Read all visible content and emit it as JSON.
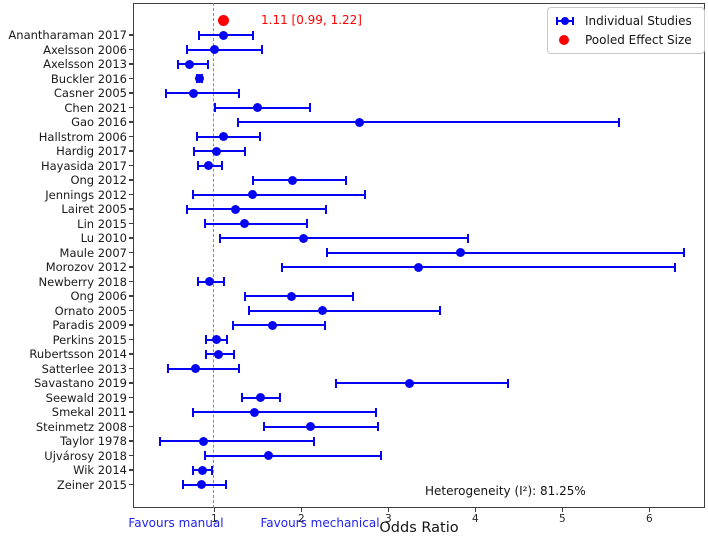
{
  "chart_data": {
    "type": "scatter",
    "subtype": "forest-plot",
    "title": "",
    "xlabel": "Odds Ratio",
    "ylabel": "",
    "xlim": [
      0.065,
      6.64
    ],
    "xticks": [
      1,
      2,
      3,
      4,
      5,
      6
    ],
    "grid": false,
    "reference_line_x": 1.0,
    "marker_color": "#0404f2",
    "pooled_color": "#ff0000",
    "pooled": {
      "est": 1.11,
      "lo": 0.99,
      "hi": 1.22,
      "display": "1.11 [0.99, 1.22]"
    },
    "heterogeneity_label": "Heterogeneity (I²): 81.25%",
    "legend": [
      {
        "label": "Individual Studies",
        "marker": "blue-errorbar-dot-icon",
        "color": "#0404f2"
      },
      {
        "label": "Pooled Effect Size",
        "marker": "red-dot-icon",
        "color": "#ff0000"
      }
    ],
    "legend_position": "upper right",
    "footer": {
      "favours_left": "Favours manual",
      "favours_right": "Favours mechanical",
      "favours_color": "#2222f0"
    },
    "studies": [
      {
        "name": "Anantharaman 2017",
        "est": 1.1,
        "lo": 0.82,
        "hi": 1.45
      },
      {
        "name": "Axelsson 2006",
        "est": 1.0,
        "lo": 0.68,
        "hi": 1.55
      },
      {
        "name": "Axelsson 2013",
        "est": 0.72,
        "lo": 0.58,
        "hi": 0.93
      },
      {
        "name": "Buckler 2016",
        "est": 0.83,
        "lo": 0.8,
        "hi": 0.86
      },
      {
        "name": "Casner 2005",
        "est": 0.76,
        "lo": 0.45,
        "hi": 1.28
      },
      {
        "name": "Chen 2021",
        "est": 1.5,
        "lo": 1.01,
        "hi": 2.1
      },
      {
        "name": "Gao 2016",
        "est": 2.67,
        "lo": 1.27,
        "hi": 5.65
      },
      {
        "name": "Hallstrom 2006",
        "est": 1.11,
        "lo": 0.8,
        "hi": 1.52
      },
      {
        "name": "Hardig 2017",
        "est": 1.02,
        "lo": 0.77,
        "hi": 1.35
      },
      {
        "name": "Hayasida 2017",
        "est": 0.93,
        "lo": 0.81,
        "hi": 1.09
      },
      {
        "name": "Ong 2012",
        "est": 1.9,
        "lo": 1.44,
        "hi": 2.51
      },
      {
        "name": "Jennings 2012",
        "est": 1.44,
        "lo": 0.76,
        "hi": 2.73
      },
      {
        "name": "Lairet 2005",
        "est": 1.24,
        "lo": 0.68,
        "hi": 2.28
      },
      {
        "name": "Lin 2015",
        "est": 1.35,
        "lo": 0.89,
        "hi": 2.07
      },
      {
        "name": "Lu 2010",
        "est": 2.03,
        "lo": 1.07,
        "hi": 3.92
      },
      {
        "name": "Maule 2007",
        "est": 3.83,
        "lo": 2.3,
        "hi": 6.4
      },
      {
        "name": "Morozov 2012",
        "est": 3.35,
        "lo": 1.78,
        "hi": 6.3
      },
      {
        "name": "Newberry 2018",
        "est": 0.94,
        "lo": 0.81,
        "hi": 1.11
      },
      {
        "name": "Ong 2006",
        "est": 1.89,
        "lo": 1.35,
        "hi": 2.59
      },
      {
        "name": "Ornato 2005",
        "est": 2.24,
        "lo": 1.4,
        "hi": 3.59
      },
      {
        "name": "Paradis 2009",
        "est": 1.67,
        "lo": 1.22,
        "hi": 2.27
      },
      {
        "name": "Perkins 2015",
        "est": 1.02,
        "lo": 0.9,
        "hi": 1.15
      },
      {
        "name": "Rubertsson 2014",
        "est": 1.05,
        "lo": 0.9,
        "hi": 1.23
      },
      {
        "name": "Satterlee 2013",
        "est": 0.78,
        "lo": 0.47,
        "hi": 1.28
      },
      {
        "name": "Savastano 2019",
        "est": 3.24,
        "lo": 2.4,
        "hi": 4.37
      },
      {
        "name": "Seewald 2019",
        "est": 1.53,
        "lo": 1.32,
        "hi": 1.76
      },
      {
        "name": "Smekal 2011",
        "est": 1.46,
        "lo": 0.75,
        "hi": 2.86
      },
      {
        "name": "Steinmetz 2008",
        "est": 2.11,
        "lo": 1.57,
        "hi": 2.88
      },
      {
        "name": "Taylor 1978",
        "est": 0.88,
        "lo": 0.37,
        "hi": 2.15
      },
      {
        "name": "Ujvárosy 2018",
        "est": 1.62,
        "lo": 0.89,
        "hi": 2.92
      },
      {
        "name": "Wik 2014",
        "est": 0.86,
        "lo": 0.76,
        "hi": 0.97
      },
      {
        "name": "Zeiner 2015",
        "est": 0.85,
        "lo": 0.64,
        "hi": 1.13
      }
    ]
  }
}
